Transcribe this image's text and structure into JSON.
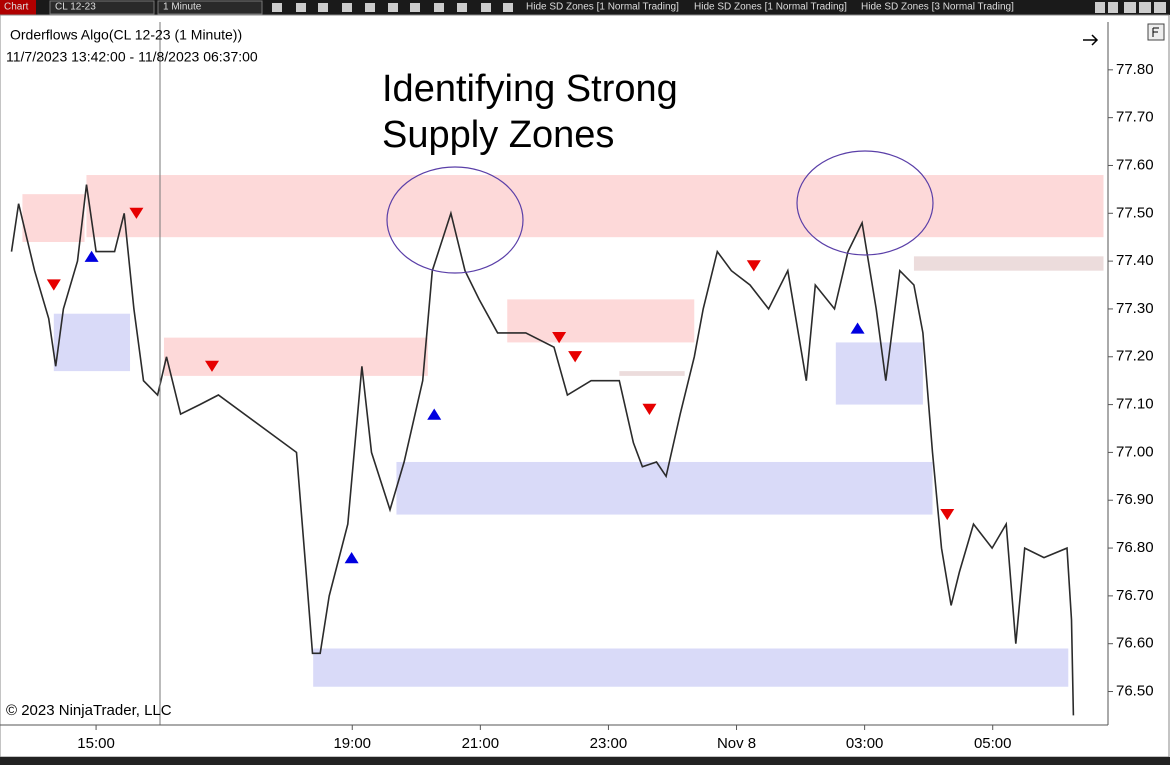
{
  "toolbar": {
    "tab": "Chart",
    "instrument": "CL 12-23",
    "interval": "1 Minute",
    "buttons": [
      "Hide SD Zones [1 Normal Trading]",
      "Hide SD Zones [1 Normal Trading]",
      "Hide SD Zones [3 Normal Trading]"
    ]
  },
  "chart_data": {
    "type": "line",
    "title": "Orderflows Algo(CL 12-23 (1 Minute))",
    "subtitle": "11/7/2023 13:42:00 - 11/8/2023 06:37:00",
    "annotation": [
      "Identifying Strong",
      "Supply Zones"
    ],
    "copyright": "© 2023 NinjaTrader, LLC",
    "xlim": [
      13.5,
      30.8
    ],
    "xticks": [
      {
        "value": 15,
        "label": "15:00"
      },
      {
        "value": 19,
        "label": "19:00"
      },
      {
        "value": 21,
        "label": "21:00"
      },
      {
        "value": 23,
        "label": "23:00"
      },
      {
        "value": 25,
        "label": "Nov 8"
      },
      {
        "value": 27,
        "label": "03:00"
      },
      {
        "value": 29,
        "label": "05:00"
      }
    ],
    "ylim": [
      76.43,
      77.9
    ],
    "yticks": [
      {
        "value": 77.8,
        "label": "77.80"
      },
      {
        "value": 77.7,
        "label": "77.70"
      },
      {
        "value": 77.6,
        "label": "77.60"
      },
      {
        "value": 77.5,
        "label": "77.50"
      },
      {
        "value": 77.4,
        "label": "77.40"
      },
      {
        "value": 77.3,
        "label": "77.30"
      },
      {
        "value": 77.2,
        "label": "77.20"
      },
      {
        "value": 77.1,
        "label": "77.10"
      },
      {
        "value": 77.0,
        "label": "77.00"
      },
      {
        "value": 76.9,
        "label": "76.90"
      },
      {
        "value": 76.8,
        "label": "76.80"
      },
      {
        "value": 76.7,
        "label": "76.70"
      },
      {
        "value": 76.6,
        "label": "76.60"
      },
      {
        "value": 76.5,
        "label": "76.50"
      }
    ],
    "zones": [
      {
        "color": "#fdd9d9",
        "x": [
          13.85,
          14.82
        ],
        "y": [
          77.44,
          77.54
        ]
      },
      {
        "color": "#fdd9d9",
        "x": [
          14.85,
          30.73
        ],
        "y": [
          77.45,
          77.58
        ]
      },
      {
        "color": "#fdd9d9",
        "x": [
          16.06,
          20.18
        ],
        "y": [
          77.16,
          77.24
        ]
      },
      {
        "color": "#fdd9d9",
        "x": [
          21.42,
          24.34
        ],
        "y": [
          77.23,
          77.32
        ]
      },
      {
        "color": "#ecdcdc",
        "x": [
          23.17,
          24.19
        ],
        "y": [
          77.16,
          77.17
        ]
      },
      {
        "color": "#ecdcdc",
        "x": [
          27.77,
          30.73
        ],
        "y": [
          77.38,
          77.41
        ]
      },
      {
        "color": "#d9daf8",
        "x": [
          14.34,
          15.53
        ],
        "y": [
          77.17,
          77.29
        ]
      },
      {
        "color": "#d9daf8",
        "x": [
          19.69,
          28.06
        ],
        "y": [
          76.87,
          76.98
        ]
      },
      {
        "color": "#d9daf8",
        "x": [
          26.55,
          27.91
        ],
        "y": [
          77.1,
          77.23
        ]
      },
      {
        "color": "#d9daf8",
        "x": [
          18.39,
          30.18
        ],
        "y": [
          76.51,
          76.59
        ]
      }
    ],
    "series": [
      {
        "color": "#2b2b2b",
        "x": [
          13.68,
          13.79,
          14.04,
          14.26,
          14.37,
          14.49,
          14.71,
          14.85,
          15.0,
          15.29,
          15.44,
          15.59,
          15.74,
          15.96,
          16.1,
          16.32,
          16.62,
          16.91,
          18.13,
          18.28,
          18.38,
          18.5,
          18.64,
          18.93,
          19.15,
          19.3,
          19.59,
          19.81,
          20.1,
          20.25,
          20.54,
          20.76,
          20.98,
          21.27,
          21.71,
          22.15,
          22.36,
          22.73,
          23.17,
          23.39,
          23.53,
          23.75,
          23.9,
          24.12,
          24.34,
          24.48,
          24.7,
          24.92,
          25.21,
          25.5,
          25.8,
          26.09,
          26.23,
          26.53,
          26.74,
          26.96,
          27.18,
          27.33,
          27.55,
          27.77,
          27.91,
          28.06,
          28.2,
          28.35,
          28.48,
          28.7,
          28.99,
          29.21,
          29.36,
          29.5,
          29.8,
          30.16,
          30.23,
          30.26
        ],
        "values": [
          77.42,
          77.52,
          77.38,
          77.28,
          77.18,
          77.3,
          77.4,
          77.56,
          77.42,
          77.42,
          77.5,
          77.3,
          77.15,
          77.12,
          77.2,
          77.08,
          77.1,
          77.12,
          77.0,
          76.75,
          76.58,
          76.58,
          76.7,
          76.85,
          77.18,
          77.0,
          76.88,
          76.98,
          77.15,
          77.38,
          77.5,
          77.38,
          77.32,
          77.25,
          77.25,
          77.22,
          77.12,
          77.15,
          77.15,
          77.02,
          76.97,
          76.98,
          76.95,
          77.08,
          77.2,
          77.3,
          77.42,
          77.38,
          77.35,
          77.3,
          77.38,
          77.15,
          77.35,
          77.3,
          77.42,
          77.48,
          77.3,
          77.15,
          77.38,
          77.35,
          77.25,
          77.0,
          76.8,
          76.68,
          76.75,
          76.85,
          76.8,
          76.85,
          76.6,
          76.8,
          76.78,
          76.8,
          76.65,
          76.45
        ]
      }
    ],
    "signals": [
      {
        "color": "#e60000",
        "direction": "down",
        "x": [
          14.34,
          15.63,
          16.81,
          22.23,
          22.48,
          23.64,
          25.27,
          28.29
        ],
        "values": [
          77.35,
          77.5,
          77.18,
          77.24,
          77.2,
          77.09,
          77.39,
          76.87
        ]
      },
      {
        "color": "#0000e0",
        "direction": "up",
        "x": [
          14.93,
          20.28,
          18.99,
          26.89
        ],
        "values": [
          77.41,
          77.08,
          76.78,
          77.26
        ]
      }
    ]
  }
}
